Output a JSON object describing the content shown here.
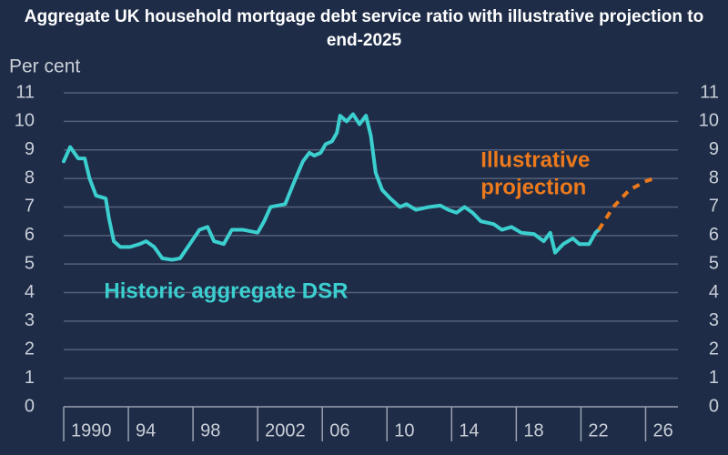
{
  "chart_data": {
    "type": "line",
    "title": "Aggregate UK household mortgage debt service ratio with illustrative projection to end-2025",
    "y_label": "Per cent",
    "xlim": [
      1990,
      2028
    ],
    "xticks": [
      1990,
      {
        "value": 1994,
        "label": "94"
      },
      {
        "value": 1998,
        "label": "98"
      },
      2002,
      {
        "value": 2006,
        "label": "06"
      },
      {
        "value": 2010,
        "label": "10"
      },
      {
        "value": 2014,
        "label": "14"
      },
      {
        "value": 2018,
        "label": "18"
      },
      {
        "value": 2022,
        "label": "22"
      },
      {
        "value": 2026,
        "label": "26"
      }
    ],
    "ylim": [
      0,
      11
    ],
    "yticks": [
      0,
      1,
      2,
      3,
      4,
      5,
      6,
      7,
      8,
      9,
      10,
      11
    ],
    "grid": true,
    "series": [
      {
        "name": "Historic aggregate DSR",
        "color": "#3ccfcf",
        "dashed": false,
        "x": [
          1990.0,
          1990.4,
          1990.9,
          1991.3,
          1991.6,
          1992.0,
          1992.6,
          1992.8,
          1993.1,
          1993.5,
          1994.1,
          1994.7,
          1995.1,
          1995.6,
          1996.1,
          1996.7,
          1997.2,
          1997.8,
          1998.4,
          1998.9,
          1999.3,
          1999.9,
          2000.4,
          2001.1,
          2002.0,
          2002.4,
          2002.8,
          2003.7,
          2004.2,
          2004.8,
          2005.2,
          2005.5,
          2005.9,
          2006.2,
          2006.6,
          2006.9,
          2007.1,
          2007.5,
          2007.9,
          2008.3,
          2008.7,
          2009.0,
          2009.3,
          2009.7,
          2010.2,
          2010.8,
          2011.2,
          2011.8,
          2012.6,
          2013.3,
          2013.8,
          2014.3,
          2014.8,
          2015.3,
          2015.8,
          2016.6,
          2017.1,
          2017.7,
          2018.3,
          2019.1,
          2019.7,
          2020.1,
          2020.4,
          2020.9,
          2021.5,
          2021.9,
          2022.5,
          2022.9,
          2023.1
        ],
        "values": [
          8.6,
          9.1,
          8.7,
          8.7,
          8.0,
          7.4,
          7.3,
          6.6,
          5.8,
          5.6,
          5.6,
          5.7,
          5.8,
          5.6,
          5.2,
          5.15,
          5.2,
          5.7,
          6.2,
          6.3,
          5.8,
          5.7,
          6.2,
          6.2,
          6.1,
          6.5,
          7.0,
          7.1,
          7.8,
          8.6,
          8.9,
          8.8,
          8.9,
          9.2,
          9.3,
          9.6,
          10.2,
          10.0,
          10.25,
          9.9,
          10.2,
          9.5,
          8.2,
          7.6,
          7.3,
          7.0,
          7.1,
          6.9,
          7.0,
          7.05,
          6.9,
          6.8,
          7.0,
          6.8,
          6.5,
          6.4,
          6.2,
          6.3,
          6.1,
          6.05,
          5.8,
          6.1,
          5.4,
          5.7,
          5.9,
          5.7,
          5.7,
          6.1,
          6.2
        ]
      },
      {
        "name": "Illustrative projection",
        "color": "#ec7a1c",
        "dashed": true,
        "x": [
          2023.1,
          2024.0,
          2025.0,
          2026.0,
          2026.5
        ],
        "values": [
          6.2,
          7.0,
          7.6,
          7.9,
          8.0
        ]
      }
    ],
    "annotations": [
      {
        "lines": [
          "Historic aggregate DSR"
        ],
        "color": "#3ccfcf",
        "x": 1992.5,
        "y": 4.0
      },
      {
        "lines": [
          "Illustrative",
          "projection"
        ],
        "color": "#ec7a1c",
        "x": 2015.8,
        "y": 8.6
      }
    ]
  }
}
